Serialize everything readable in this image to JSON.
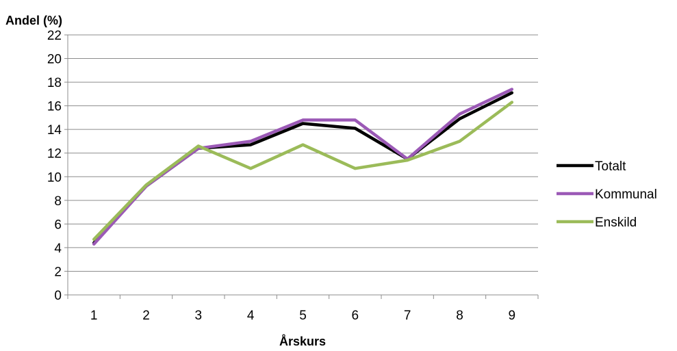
{
  "chart_data": {
    "type": "line",
    "title": "",
    "ylabel": "Andel (%)",
    "xlabel": "Årskurs",
    "categories": [
      "1",
      "2",
      "3",
      "4",
      "5",
      "6",
      "7",
      "8",
      "9"
    ],
    "ylim": [
      0,
      22
    ],
    "ytick_step": 2,
    "grid": "horizontal",
    "legend_position": "right",
    "series": [
      {
        "name": "Totalt",
        "color": "#000000",
        "values": [
          4.4,
          9.2,
          12.4,
          12.7,
          14.5,
          14.1,
          11.5,
          14.9,
          17.1
        ]
      },
      {
        "name": "Kommunal",
        "color": "#9B59B6",
        "values": [
          4.3,
          9.2,
          12.4,
          13.0,
          14.8,
          14.8,
          11.5,
          15.3,
          17.4
        ]
      },
      {
        "name": "Enskild",
        "color": "#9BBB59",
        "values": [
          4.7,
          9.3,
          12.6,
          10.7,
          12.7,
          10.7,
          11.4,
          13.0,
          16.3
        ]
      }
    ]
  }
}
